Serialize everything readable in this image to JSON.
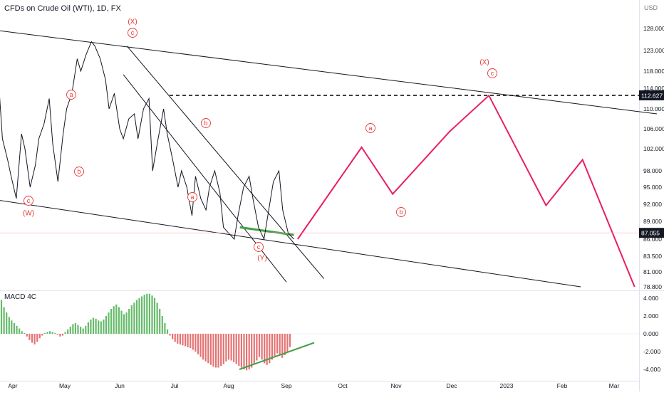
{
  "chart_data": [
    {
      "type": "line",
      "title": "CFDs on Crude Oil (WTI), 1D, FX",
      "currency": "USD",
      "y_ticks": [
        128.0,
        123.0,
        118.0,
        114.0,
        110.0,
        106.0,
        102.0,
        98.0,
        95.0,
        92.0,
        89.0,
        86.0,
        83.5,
        81.0,
        78.8
      ],
      "y_tick_labels": [
        "128.000",
        "123.000",
        "118.000",
        "114.000",
        "110.000",
        "106.000",
        "102.000",
        "98.000",
        "95.000",
        "92.000",
        "89.000",
        "86.000",
        "83.500",
        "81.000",
        "78.800"
      ],
      "x_tick_labels": [
        "Apr",
        "May",
        "Jun",
        "Jul",
        "Aug",
        "Sep",
        "Oct",
        "Nov",
        "Dec",
        "2023",
        "Feb",
        "Mar"
      ],
      "series": [
        {
          "values": [
            114.5,
            104,
            100,
            97,
            93,
            105,
            102,
            95,
            99,
            104,
            107,
            112,
            103,
            96,
            105,
            110,
            113,
            121,
            118,
            122,
            125,
            124,
            121,
            116,
            110,
            113,
            106,
            104,
            108,
            109,
            104,
            110,
            112,
            98,
            104,
            110,
            105,
            100,
            95,
            98,
            95,
            90,
            97,
            93,
            91,
            95,
            98,
            94,
            88,
            87,
            86,
            90,
            95,
            97,
            93,
            88,
            86,
            90,
            96,
            98,
            91,
            87,
            86
          ]
        },
        {
          "name": "projection",
          "color": "#e91e63",
          "x": [
            "2022-09-07",
            "2022-10-12",
            "2022-10-30",
            "2022-11-30",
            "2022-12-22",
            "2023-01-23",
            "2023-02-12",
            "2023-03-12"
          ],
          "values": [
            86.0,
            102.3,
            93.8,
            105.5,
            112.6,
            91.8,
            100.0,
            78.8
          ]
        }
      ],
      "price_labels": [
        {
          "value": 112.627,
          "label": "112.627",
          "style": "dashed-level"
        },
        {
          "value": 87.055,
          "label": "87.055",
          "style": "last-price"
        }
      ],
      "wave_labels": [
        {
          "text": "(X)",
          "color": "#e53935"
        },
        {
          "text": "c",
          "color": "#e53935"
        },
        {
          "text": "a",
          "color": "#e53935"
        },
        {
          "text": "b",
          "color": "#e53935"
        },
        {
          "text": "b",
          "color": "#e53935"
        },
        {
          "text": "c",
          "color": "#e53935"
        },
        {
          "text": "(W)",
          "color": "#e53935"
        },
        {
          "text": "a",
          "color": "#e53935"
        },
        {
          "text": "c",
          "color": "#e53935"
        },
        {
          "text": "(Y)",
          "color": "#e53935"
        },
        {
          "text": "a",
          "color": "#e53935"
        },
        {
          "text": "b",
          "color": "#e53935"
        },
        {
          "text": "(X)",
          "color": "#e53935"
        },
        {
          "text": "c",
          "color": "#e53935"
        }
      ],
      "trendlines": [
        {
          "from": [
            "2022-03-24",
            127.5
          ],
          "to": [
            "2023-03-24",
            109.0
          ],
          "color": "#131722"
        },
        {
          "from": [
            "2022-03-24",
            92.7
          ],
          "to": [
            "2023-02-11",
            78.8
          ],
          "color": "#131722"
        },
        {
          "from": [
            "2022-06-05",
            124.0
          ],
          "to": [
            "2022-09-21",
            80.0
          ],
          "color": "#131722"
        },
        {
          "from": [
            "2022-06-03",
            117.2
          ],
          "to": [
            "2022-09-01",
            79.5
          ],
          "color": "#131722"
        },
        {
          "from": [
            "2022-08-07",
            88.0
          ],
          "to": [
            "2022-09-05",
            86.7
          ],
          "color": "#43a047"
        }
      ]
    },
    {
      "type": "bar",
      "title": "MACD 4C",
      "y_ticks": [
        4,
        2,
        0,
        -2,
        -4
      ],
      "y_tick_labels": [
        "4.000",
        "2.000",
        "0.000",
        "-2.000",
        "-4.000"
      ],
      "positive_color": "#66bb6a",
      "negative_color": "#e57373",
      "values": [
        3.8,
        3.0,
        2.4,
        1.9,
        1.5,
        1.2,
        0.9,
        0.6,
        0.3,
        0.1,
        -0.3,
        -0.7,
        -1.0,
        -1.2,
        -0.9,
        -0.5,
        -0.2,
        0.1,
        0.2,
        0.3,
        0.2,
        0.1,
        -0.1,
        -0.3,
        -0.2,
        0.2,
        0.5,
        0.8,
        1.1,
        1.2,
        1.0,
        0.8,
        0.6,
        0.9,
        1.3,
        1.6,
        1.8,
        1.7,
        1.5,
        1.4,
        1.6,
        2.0,
        2.4,
        2.8,
        3.1,
        3.3,
        3.0,
        2.6,
        2.2,
        2.4,
        2.8,
        3.2,
        3.5,
        3.8,
        4.0,
        4.2,
        4.4,
        4.5,
        4.5,
        4.3,
        4.0,
        3.5,
        2.8,
        2.0,
        1.2,
        0.5,
        -0.2,
        -0.6,
        -0.9,
        -1.1,
        -1.2,
        -1.3,
        -1.4,
        -1.5,
        -1.6,
        -1.8,
        -2.0,
        -2.3,
        -2.6,
        -2.9,
        -3.1,
        -3.3,
        -3.5,
        -3.7,
        -3.8,
        -3.8,
        -3.6,
        -3.4,
        -3.1,
        -2.9,
        -3.0,
        -3.2,
        -3.4,
        -3.6,
        -3.8,
        -4.0,
        -4.1,
        -4.0,
        -3.8,
        -3.4,
        -3.0,
        -2.6,
        -2.9,
        -3.3,
        -3.5,
        -3.3,
        -2.9,
        -2.5,
        -2.2,
        -2.4,
        -2.7,
        -2.4,
        -2.0,
        -1.5
      ],
      "trendline": {
        "from": [
          -4.0
        ],
        "to": [
          -1.0
        ],
        "color": "#43a047"
      }
    }
  ]
}
